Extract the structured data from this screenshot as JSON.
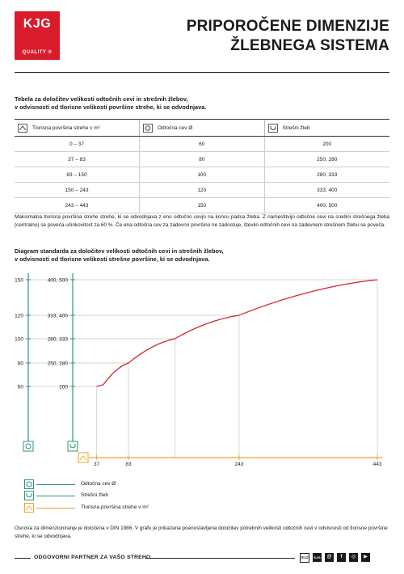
{
  "brand": {
    "name": "KJG",
    "tagline": "QUALITY",
    "mark": "®"
  },
  "title": {
    "line1": "PRIPOROČENE DIMENZIJE",
    "line2": "ŽLEBNEGA SISTEMA"
  },
  "table": {
    "intro_line1": "Tebela za določitev velikosti odtočnih cevi in strešnih žlebov,",
    "intro_line2": "v odvisnosti od tlorisne velikosti površine strehe, ki se odvodnjava.",
    "headers": [
      "Tlorisna površina strehe v m²",
      "Odtočna cev Ø",
      "Strešni žleb"
    ],
    "header_icons": [
      "roof-icon",
      "pipe-icon",
      "gutter-icon"
    ],
    "rows": [
      [
        "0 – 37",
        "60",
        "200"
      ],
      [
        "37 – 83",
        "80",
        "250, 280"
      ],
      [
        "83 – 150",
        "100",
        "280, 333"
      ],
      [
        "150 – 243",
        "120",
        "333, 400"
      ],
      [
        "243 – 443",
        "150",
        "400, 500"
      ]
    ]
  },
  "note": "Maksimalna tlorisna površina strehe strehe, ki se odvodnjava z eno odtočno cevjo na koncu padca žleba. Z namestitvijo odtočne cevi na sredini strešnega žleba (centralno) se poveča učinkovitost za 60 %. Če ena odtočna cev za zadevno površino ne zadostuje, število odtočnih cevi na zadevnem strešnem žlebu se poveča.",
  "chart_intro": {
    "line1": "Diagram standarda za določitev velikosti odtočnih cevi in strešnih žlebov,",
    "line2": "v odvisnosti od tlorisne velikosti strešne površine, ki se odvodnjava."
  },
  "chart_data": {
    "type": "line",
    "title": "",
    "x_axis": {
      "label": "Tlorisna površina strehe v m²",
      "range": [
        0,
        450
      ],
      "ticks_top": [
        "37",
        "83",
        "243",
        "443"
      ],
      "ticks_bottom": [
        "50",
        "100",
        "150",
        "200",
        "250",
        "300",
        "350",
        "400",
        "450"
      ]
    },
    "pipe_axis": {
      "label": "Odtočna cev Ø",
      "ticks": [
        "150",
        "120",
        "100",
        "80",
        "60"
      ]
    },
    "gutter_axis": {
      "label": "Strešni žleb",
      "ticks": [
        "400, 500",
        "333, 400",
        "280, 333",
        "250, 280",
        "200"
      ]
    },
    "pipe_values": [
      150,
      120,
      100,
      80,
      60
    ],
    "points": [
      {
        "x": 37,
        "pipe": 60
      },
      {
        "x": 83,
        "pipe": 80
      },
      {
        "x": 150,
        "pipe": 100
      },
      {
        "x": 243,
        "pipe": 120
      },
      {
        "x": 443,
        "pipe": 150
      }
    ],
    "colors": {
      "curve": "#d11f2a",
      "pipe_axis": "#2c8c8a",
      "gutter_axis": "#2c9a6e",
      "area_axis": "#f0a030",
      "grid": "#c8c8c8"
    },
    "legend": [
      {
        "icon": "pipe-icon",
        "label": "Odtočna cev Ø",
        "color": "#2c8c8a"
      },
      {
        "icon": "gutter-icon",
        "label": "Strešni žleb",
        "color": "#2c9a6e"
      },
      {
        "icon": "roof-icon",
        "label": "Tlorisna površina strehe v m²",
        "color": "#f0a030"
      }
    ]
  },
  "footer": {
    "note": "Osnova za dimenzioniranje je določena v DIN 1986. V grafu je prikazana poenostavljena določitev potrebnih velikosti odtočnih cevi v odvisnosti od tlorisne površine strehe, ki se odvodnjava.",
    "tagline": "ODGOVORNI PARTNER ZA VAŠO STREHO",
    "badges": [
      "SLO",
      "KJG",
      "@",
      "f",
      "◎",
      "▶"
    ]
  }
}
